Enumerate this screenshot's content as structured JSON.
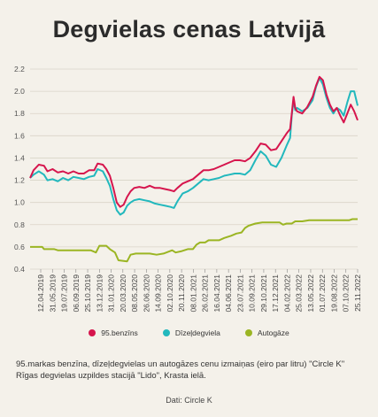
{
  "title": "Degvielas cenas Latvijā",
  "caption": "95.markas benzīna, dīzeļdegvielas un autogāzes cenu izmaiņas (eiro par litru) \"Circle K\" Rīgas degvielas uzpildes stacijā \"Lido\", Krasta ielā.",
  "source": "Dati: Circle K",
  "chart_data": {
    "type": "line",
    "ylim": [
      0.4,
      2.2
    ],
    "yticks": [
      "0.4",
      "0.6",
      "0.8",
      "1.0",
      "1.2",
      "1.4",
      "1.6",
      "1.8",
      "2.0",
      "2.2"
    ],
    "ytick_values": [
      0.4,
      0.6,
      0.8,
      1.0,
      1.2,
      1.4,
      1.6,
      1.8,
      2.0,
      2.2
    ],
    "grid": true,
    "legend_position": "bottom",
    "x_range": [
      "2019-04-12",
      "2022-11-25"
    ],
    "xticks": [
      "12.04.2019",
      "31.05.2019",
      "19.07.2019",
      "06.09.2019",
      "25.10.2019",
      "13.12.2019",
      "31.01.2020",
      "20.03.2020",
      "08.05.2020",
      "26.06.2020",
      "14.09.2020",
      "02.10.2020",
      "20.11.2020",
      "08.01.2021",
      "26.02.2021",
      "16.04.2021",
      "04.06.2021",
      "23.07.2021",
      "10.09.2021",
      "29.10.2021",
      "17.12.2021",
      "04.02.2022",
      "25.03.2022",
      "13.05.2022",
      "01.07.2022",
      "19.08.2022",
      "07.10.2022",
      "25.11.2022"
    ],
    "series": [
      {
        "name": "95.benzīns",
        "color": "#d6154d",
        "points": [
          [
            "2019-04-12",
            1.22
          ],
          [
            "2019-04-26",
            1.29
          ],
          [
            "2019-05-17",
            1.34
          ],
          [
            "2019-06-07",
            1.33
          ],
          [
            "2019-06-21",
            1.28
          ],
          [
            "2019-07-12",
            1.3
          ],
          [
            "2019-08-02",
            1.27
          ],
          [
            "2019-08-23",
            1.28
          ],
          [
            "2019-09-13",
            1.26
          ],
          [
            "2019-10-04",
            1.28
          ],
          [
            "2019-10-25",
            1.26
          ],
          [
            "2019-11-15",
            1.26
          ],
          [
            "2019-12-06",
            1.29
          ],
          [
            "2019-12-27",
            1.29
          ],
          [
            "2020-01-10",
            1.35
          ],
          [
            "2020-01-31",
            1.34
          ],
          [
            "2020-02-14",
            1.3
          ],
          [
            "2020-02-28",
            1.24
          ],
          [
            "2020-03-13",
            1.13
          ],
          [
            "2020-03-27",
            1.0
          ],
          [
            "2020-04-10",
            0.96
          ],
          [
            "2020-04-24",
            0.98
          ],
          [
            "2020-05-08",
            1.05
          ],
          [
            "2020-05-22",
            1.1
          ],
          [
            "2020-06-05",
            1.13
          ],
          [
            "2020-06-26",
            1.14
          ],
          [
            "2020-07-17",
            1.13
          ],
          [
            "2020-08-07",
            1.15
          ],
          [
            "2020-08-28",
            1.13
          ],
          [
            "2020-09-18",
            1.13
          ],
          [
            "2020-10-09",
            1.12
          ],
          [
            "2020-10-30",
            1.11
          ],
          [
            "2020-11-13",
            1.1
          ],
          [
            "2020-11-27",
            1.13
          ],
          [
            "2020-12-18",
            1.17
          ],
          [
            "2021-01-08",
            1.19
          ],
          [
            "2021-01-29",
            1.21
          ],
          [
            "2021-02-19",
            1.25
          ],
          [
            "2021-03-12",
            1.29
          ],
          [
            "2021-04-02",
            1.29
          ],
          [
            "2021-04-23",
            1.3
          ],
          [
            "2021-05-14",
            1.32
          ],
          [
            "2021-06-04",
            1.34
          ],
          [
            "2021-06-25",
            1.36
          ],
          [
            "2021-07-16",
            1.38
          ],
          [
            "2021-08-06",
            1.38
          ],
          [
            "2021-08-27",
            1.37
          ],
          [
            "2021-09-17",
            1.4
          ],
          [
            "2021-10-08",
            1.46
          ],
          [
            "2021-10-29",
            1.53
          ],
          [
            "2021-11-19",
            1.52
          ],
          [
            "2021-12-10",
            1.47
          ],
          [
            "2021-12-31",
            1.48
          ],
          [
            "2022-01-21",
            1.55
          ],
          [
            "2022-02-11",
            1.62
          ],
          [
            "2022-02-25",
            1.66
          ],
          [
            "2022-03-04",
            1.8
          ],
          [
            "2022-03-11",
            1.95
          ],
          [
            "2022-03-18",
            1.85
          ],
          [
            "2022-03-25",
            1.82
          ],
          [
            "2022-04-15",
            1.8
          ],
          [
            "2022-05-06",
            1.86
          ],
          [
            "2022-05-27",
            1.95
          ],
          [
            "2022-06-10",
            2.05
          ],
          [
            "2022-06-24",
            2.13
          ],
          [
            "2022-07-08",
            2.1
          ],
          [
            "2022-07-22",
            1.97
          ],
          [
            "2022-08-05",
            1.88
          ],
          [
            "2022-08-19",
            1.82
          ],
          [
            "2022-09-02",
            1.85
          ],
          [
            "2022-09-16",
            1.78
          ],
          [
            "2022-09-30",
            1.72
          ],
          [
            "2022-10-14",
            1.8
          ],
          [
            "2022-10-28",
            1.88
          ],
          [
            "2022-11-11",
            1.82
          ],
          [
            "2022-11-25",
            1.74
          ]
        ]
      },
      {
        "name": "Dīzeļdegviela",
        "color": "#22b8bd",
        "points": [
          [
            "2019-04-12",
            1.22
          ],
          [
            "2019-04-26",
            1.25
          ],
          [
            "2019-05-17",
            1.28
          ],
          [
            "2019-06-07",
            1.25
          ],
          [
            "2019-06-21",
            1.2
          ],
          [
            "2019-07-12",
            1.21
          ],
          [
            "2019-08-02",
            1.19
          ],
          [
            "2019-08-23",
            1.22
          ],
          [
            "2019-09-13",
            1.2
          ],
          [
            "2019-10-04",
            1.23
          ],
          [
            "2019-10-25",
            1.22
          ],
          [
            "2019-11-15",
            1.21
          ],
          [
            "2019-12-06",
            1.23
          ],
          [
            "2019-12-27",
            1.24
          ],
          [
            "2020-01-10",
            1.3
          ],
          [
            "2020-01-31",
            1.28
          ],
          [
            "2020-02-14",
            1.22
          ],
          [
            "2020-02-28",
            1.15
          ],
          [
            "2020-03-13",
            1.03
          ],
          [
            "2020-03-27",
            0.93
          ],
          [
            "2020-04-10",
            0.89
          ],
          [
            "2020-04-24",
            0.91
          ],
          [
            "2020-05-08",
            0.97
          ],
          [
            "2020-05-22",
            1.0
          ],
          [
            "2020-06-05",
            1.02
          ],
          [
            "2020-06-26",
            1.03
          ],
          [
            "2020-07-17",
            1.02
          ],
          [
            "2020-08-07",
            1.01
          ],
          [
            "2020-08-28",
            0.99
          ],
          [
            "2020-09-18",
            0.98
          ],
          [
            "2020-10-09",
            0.97
          ],
          [
            "2020-10-30",
            0.96
          ],
          [
            "2020-11-13",
            0.95
          ],
          [
            "2020-11-27",
            1.01
          ],
          [
            "2020-12-18",
            1.08
          ],
          [
            "2021-01-08",
            1.1
          ],
          [
            "2021-01-29",
            1.13
          ],
          [
            "2021-02-19",
            1.17
          ],
          [
            "2021-03-12",
            1.21
          ],
          [
            "2021-04-02",
            1.2
          ],
          [
            "2021-04-23",
            1.21
          ],
          [
            "2021-05-14",
            1.22
          ],
          [
            "2021-06-04",
            1.24
          ],
          [
            "2021-06-25",
            1.25
          ],
          [
            "2021-07-16",
            1.26
          ],
          [
            "2021-08-06",
            1.26
          ],
          [
            "2021-08-27",
            1.25
          ],
          [
            "2021-09-17",
            1.29
          ],
          [
            "2021-10-08",
            1.38
          ],
          [
            "2021-10-29",
            1.46
          ],
          [
            "2021-11-19",
            1.42
          ],
          [
            "2021-12-10",
            1.34
          ],
          [
            "2021-12-31",
            1.32
          ],
          [
            "2022-01-21",
            1.4
          ],
          [
            "2022-02-11",
            1.51
          ],
          [
            "2022-02-25",
            1.58
          ],
          [
            "2022-03-04",
            1.78
          ],
          [
            "2022-03-11",
            1.92
          ],
          [
            "2022-03-18",
            1.83
          ],
          [
            "2022-03-25",
            1.85
          ],
          [
            "2022-04-15",
            1.82
          ],
          [
            "2022-05-06",
            1.85
          ],
          [
            "2022-05-27",
            1.92
          ],
          [
            "2022-06-10",
            2.04
          ],
          [
            "2022-06-24",
            2.12
          ],
          [
            "2022-07-08",
            2.06
          ],
          [
            "2022-07-22",
            1.94
          ],
          [
            "2022-08-05",
            1.85
          ],
          [
            "2022-08-19",
            1.8
          ],
          [
            "2022-09-02",
            1.85
          ],
          [
            "2022-09-16",
            1.83
          ],
          [
            "2022-09-30",
            1.78
          ],
          [
            "2022-10-14",
            1.9
          ],
          [
            "2022-10-28",
            2.0
          ],
          [
            "2022-11-11",
            2.0
          ],
          [
            "2022-11-25",
            1.87
          ]
        ]
      },
      {
        "name": "Autogāze",
        "color": "#9bb523",
        "points": [
          [
            "2019-04-12",
            0.6
          ],
          [
            "2019-05-31",
            0.6
          ],
          [
            "2019-06-07",
            0.58
          ],
          [
            "2019-07-19",
            0.58
          ],
          [
            "2019-08-02",
            0.57
          ],
          [
            "2019-10-25",
            0.57
          ],
          [
            "2019-12-13",
            0.57
          ],
          [
            "2020-01-03",
            0.55
          ],
          [
            "2020-01-17",
            0.61
          ],
          [
            "2020-02-14",
            0.61
          ],
          [
            "2020-02-28",
            0.58
          ],
          [
            "2020-03-20",
            0.55
          ],
          [
            "2020-04-03",
            0.48
          ],
          [
            "2020-05-08",
            0.47
          ],
          [
            "2020-05-22",
            0.53
          ],
          [
            "2020-06-12",
            0.54
          ],
          [
            "2020-08-07",
            0.54
          ],
          [
            "2020-09-04",
            0.53
          ],
          [
            "2020-10-02",
            0.54
          ],
          [
            "2020-11-06",
            0.57
          ],
          [
            "2020-11-20",
            0.55
          ],
          [
            "2020-12-11",
            0.56
          ],
          [
            "2021-01-08",
            0.58
          ],
          [
            "2021-01-29",
            0.58
          ],
          [
            "2021-02-12",
            0.62
          ],
          [
            "2021-02-26",
            0.64
          ],
          [
            "2021-03-19",
            0.64
          ],
          [
            "2021-04-02",
            0.66
          ],
          [
            "2021-05-14",
            0.66
          ],
          [
            "2021-06-04",
            0.68
          ],
          [
            "2021-07-02",
            0.7
          ],
          [
            "2021-07-23",
            0.72
          ],
          [
            "2021-08-13",
            0.73
          ],
          [
            "2021-08-27",
            0.77
          ],
          [
            "2021-09-10",
            0.79
          ],
          [
            "2021-10-08",
            0.81
          ],
          [
            "2021-11-05",
            0.82
          ],
          [
            "2022-01-14",
            0.82
          ],
          [
            "2022-01-28",
            0.8
          ],
          [
            "2022-02-11",
            0.81
          ],
          [
            "2022-03-04",
            0.81
          ],
          [
            "2022-03-18",
            0.83
          ],
          [
            "2022-04-15",
            0.83
          ],
          [
            "2022-05-13",
            0.84
          ],
          [
            "2022-08-19",
            0.84
          ],
          [
            "2022-09-16",
            0.84
          ],
          [
            "2022-10-21",
            0.84
          ],
          [
            "2022-11-04",
            0.85
          ],
          [
            "2022-11-25",
            0.85
          ]
        ]
      }
    ]
  }
}
